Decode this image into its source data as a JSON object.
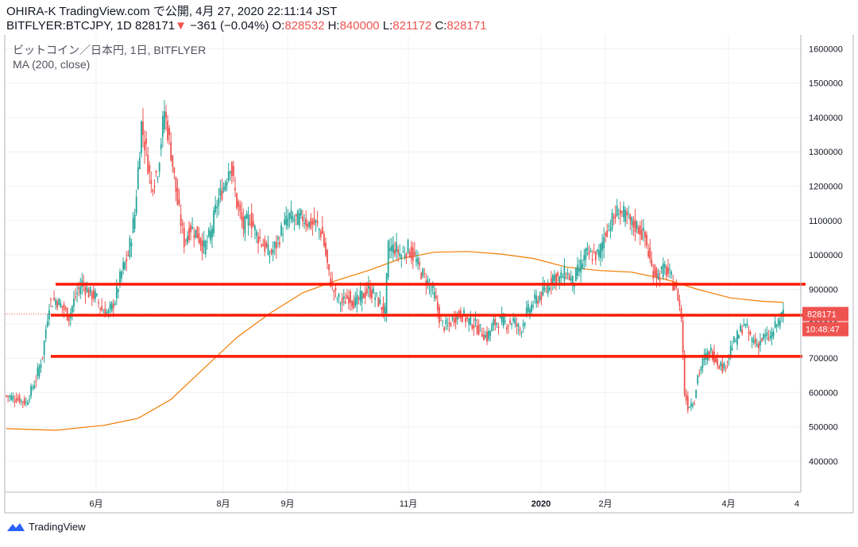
{
  "header": {
    "publisher": "OHIRA-K",
    "site": "TradingView.com",
    "published_prefix": "で公開,",
    "published_date": "4月 27, 2020 22:11:14 JST",
    "symbol_line": "BITFLYER:BTCJPY, 1D",
    "last": "828171",
    "change": "−361 (−0.04%)",
    "o_label": "O:",
    "o": "828532",
    "h_label": "H:",
    "h": "840000",
    "l_label": "L:",
    "l": "821172",
    "c_label": "C:",
    "c": "828171"
  },
  "legend": {
    "title": "ビットコイン／日本円, 1日, BITFLYER",
    "indicator": "MA (200, close)"
  },
  "brand": {
    "name": "TradingView",
    "icon": "tradingview-logo-icon"
  },
  "colors": {
    "up": "#26a69a",
    "down": "#ef5350",
    "ma": "#f57c00",
    "hline": "#ff1a00",
    "grid": "#eef0f3",
    "axis": "#787b86"
  },
  "chart_data": {
    "type": "candlestick",
    "title": "ビットコイン／日本円, 1日, BITFLYER",
    "series": [
      {
        "name": "BTCJPY",
        "type": "candlestick"
      },
      {
        "name": "MA (200, close)",
        "type": "line"
      }
    ],
    "ylim": [
      310000,
      1640000
    ],
    "y_ticks": [
      400000,
      500000,
      600000,
      700000,
      800000,
      900000,
      1000000,
      1100000,
      1200000,
      1300000,
      1400000,
      1500000,
      1600000
    ],
    "x_ticks": [
      "6月",
      "8月",
      "9月",
      "11月",
      "2020",
      "2月",
      "4月",
      "4"
    ],
    "grid": true,
    "price_series": [
      [
        0,
        590000
      ],
      [
        8,
        580000
      ],
      [
        12,
        570000
      ],
      [
        18,
        640000
      ],
      [
        22,
        710000
      ],
      [
        26,
        860000
      ],
      [
        30,
        870000
      ],
      [
        34,
        850000
      ],
      [
        38,
        820000
      ],
      [
        42,
        880000
      ],
      [
        46,
        920000
      ],
      [
        50,
        890000
      ],
      [
        54,
        880000
      ],
      [
        58,
        840000
      ],
      [
        62,
        830000
      ],
      [
        66,
        870000
      ],
      [
        70,
        950000
      ],
      [
        74,
        1000000
      ],
      [
        78,
        1120000
      ],
      [
        82,
        1380000
      ],
      [
        85,
        1300000
      ],
      [
        88,
        1200000
      ],
      [
        92,
        1250000
      ],
      [
        96,
        1420000
      ],
      [
        100,
        1300000
      ],
      [
        104,
        1150000
      ],
      [
        108,
        1040000
      ],
      [
        112,
        1080000
      ],
      [
        116,
        1060000
      ],
      [
        120,
        1020000
      ],
      [
        124,
        1060000
      ],
      [
        128,
        1150000
      ],
      [
        132,
        1200000
      ],
      [
        136,
        1270000
      ],
      [
        140,
        1150000
      ],
      [
        144,
        1080000
      ],
      [
        148,
        1110000
      ],
      [
        152,
        1060000
      ],
      [
        156,
        1030000
      ],
      [
        160,
        1000000
      ],
      [
        164,
        1030000
      ],
      [
        168,
        1080000
      ],
      [
        172,
        1110000
      ],
      [
        176,
        1100000
      ],
      [
        180,
        1110000
      ],
      [
        184,
        1090000
      ],
      [
        188,
        1090000
      ],
      [
        192,
        1060000
      ],
      [
        196,
        940000
      ],
      [
        200,
        880000
      ],
      [
        204,
        860000
      ],
      [
        208,
        880000
      ],
      [
        212,
        860000
      ],
      [
        216,
        880000
      ],
      [
        220,
        900000
      ],
      [
        224,
        880000
      ],
      [
        228,
        850000
      ],
      [
        230,
        830000
      ],
      [
        232,
        1020000
      ],
      [
        236,
        1020000
      ],
      [
        240,
        1000000
      ],
      [
        244,
        1020000
      ],
      [
        248,
        990000
      ],
      [
        252,
        950000
      ],
      [
        256,
        920000
      ],
      [
        260,
        880000
      ],
      [
        264,
        800000
      ],
      [
        268,
        790000
      ],
      [
        272,
        820000
      ],
      [
        276,
        830000
      ],
      [
        280,
        810000
      ],
      [
        284,
        800000
      ],
      [
        288,
        780000
      ],
      [
        292,
        760000
      ],
      [
        296,
        800000
      ],
      [
        300,
        810000
      ],
      [
        304,
        800000
      ],
      [
        308,
        810000
      ],
      [
        312,
        780000
      ],
      [
        316,
        830000
      ],
      [
        320,
        860000
      ],
      [
        324,
        880000
      ],
      [
        328,
        900000
      ],
      [
        332,
        940000
      ],
      [
        336,
        930000
      ],
      [
        340,
        950000
      ],
      [
        344,
        920000
      ],
      [
        348,
        960000
      ],
      [
        352,
        1000000
      ],
      [
        356,
        1000000
      ],
      [
        360,
        1000000
      ],
      [
        364,
        1070000
      ],
      [
        368,
        1100000
      ],
      [
        372,
        1130000
      ],
      [
        376,
        1110000
      ],
      [
        380,
        1090000
      ],
      [
        384,
        1080000
      ],
      [
        388,
        1050000
      ],
      [
        392,
        960000
      ],
      [
        396,
        940000
      ],
      [
        400,
        960000
      ],
      [
        404,
        930000
      ],
      [
        408,
        880000
      ],
      [
        410,
        820000
      ],
      [
        412,
        600000
      ],
      [
        414,
        560000
      ],
      [
        418,
        580000
      ],
      [
        420,
        650000
      ],
      [
        424,
        700000
      ],
      [
        428,
        720000
      ],
      [
        432,
        690000
      ],
      [
        436,
        670000
      ],
      [
        440,
        730000
      ],
      [
        444,
        760000
      ],
      [
        448,
        800000
      ],
      [
        452,
        760000
      ],
      [
        456,
        740000
      ],
      [
        460,
        760000
      ],
      [
        464,
        760000
      ],
      [
        468,
        800000
      ],
      [
        472,
        828171
      ]
    ],
    "ma_series": [
      [
        0,
        495000
      ],
      [
        30,
        490000
      ],
      [
        60,
        505000
      ],
      [
        80,
        525000
      ],
      [
        100,
        580000
      ],
      [
        120,
        670000
      ],
      [
        140,
        760000
      ],
      [
        160,
        830000
      ],
      [
        180,
        890000
      ],
      [
        200,
        925000
      ],
      [
        220,
        955000
      ],
      [
        240,
        990000
      ],
      [
        260,
        1008000
      ],
      [
        280,
        1010000
      ],
      [
        300,
        1003000
      ],
      [
        320,
        990000
      ],
      [
        340,
        965000
      ],
      [
        360,
        955000
      ],
      [
        380,
        950000
      ],
      [
        400,
        930000
      ],
      [
        420,
        900000
      ],
      [
        440,
        875000
      ],
      [
        460,
        865000
      ],
      [
        472,
        862000
      ]
    ],
    "horizontal_lines": [
      915000,
      825000,
      705000
    ],
    "last_price": {
      "value": "828171",
      "countdown": "10:48:47"
    }
  }
}
